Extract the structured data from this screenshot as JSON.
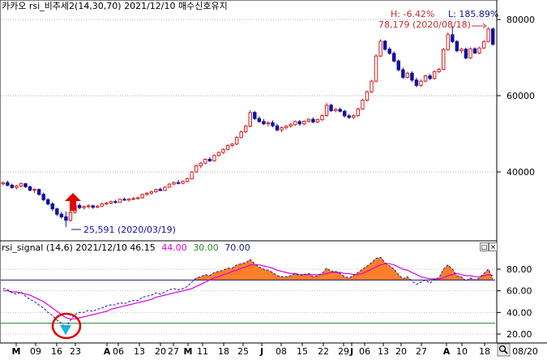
{
  "main_panel": {
    "title": "카카오 rsi_비추세2(14,30,70)  2021/12/10 매수신호유지",
    "hl_label_h": "H: -6.42%",
    "hl_label_l": "L: 185.89%",
    "high_annotation": "78,179 (2020/08/18)",
    "low_annotation": "25,591 (2020/03/19)"
  },
  "sub_panel": {
    "title_prefix": "rsi_signal  (14,6) 2021/12/10 46.15",
    "val_magenta": "44.00",
    "val_green": "30.00",
    "val_navy": "70.00"
  },
  "colors": {
    "up": "#d62020",
    "down": "#1010a0",
    "rsi": "#1a1aa0",
    "signal": "#dd00dd",
    "fill": "#ff7f27",
    "line70": "#1a1a7a",
    "line30": "#2a8a2a",
    "arrow": "#e00000",
    "circle": "#e00000",
    "triangle": "#1ab0e0"
  },
  "x_axis": {
    "labels": [
      "M",
      "09",
      "16",
      "23",
      "A",
      "06",
      "13",
      "20",
      "27",
      "M",
      "11",
      "18",
      "25",
      "J",
      "08",
      "15",
      "22",
      "29",
      "J",
      "06",
      "13",
      "20",
      "27",
      "A",
      "10",
      "18",
      "08/20"
    ]
  },
  "chart_data": [
    {
      "type": "candlestick",
      "title": "카카오 rsi_비추세2(14,30,70)  2021/12/10 매수신호유지",
      "ylim": [
        24000,
        82000
      ],
      "y_ticks": [
        80000,
        60000,
        40000
      ],
      "y_tick_labels": [
        "80000",
        "60000",
        "40000"
      ],
      "candles": [
        [
          36900,
          37500,
          36400,
          37200
        ],
        [
          37200,
          37700,
          36200,
          36500
        ],
        [
          36500,
          36900,
          35600,
          35900
        ],
        [
          35900,
          36600,
          35400,
          36300
        ],
        [
          36300,
          37300,
          35900,
          36900
        ],
        [
          36900,
          37100,
          35800,
          36100
        ],
        [
          36100,
          36400,
          34900,
          35200
        ],
        [
          35200,
          35700,
          34400,
          35400
        ],
        [
          35400,
          35600,
          33800,
          34100
        ],
        [
          34100,
          34600,
          32300,
          32700
        ],
        [
          32700,
          33100,
          31200,
          31600
        ],
        [
          31600,
          32100,
          29700,
          30300
        ],
        [
          30300,
          30600,
          28400,
          28900
        ],
        [
          28900,
          29500,
          27700,
          28200
        ],
        [
          28200,
          29600,
          25591,
          27300
        ],
        [
          27300,
          29900,
          26900,
          29400
        ],
        [
          29400,
          31800,
          29000,
          31200
        ],
        [
          31200,
          31700,
          30200,
          30600
        ],
        [
          30600,
          31200,
          30100,
          30900
        ],
        [
          30900,
          31500,
          30400,
          31100
        ],
        [
          31100,
          31400,
          30300,
          30700
        ],
        [
          30700,
          31300,
          30500,
          31000
        ],
        [
          31000,
          32000,
          30800,
          31600
        ],
        [
          31600,
          32100,
          31300,
          31800
        ],
        [
          31800,
          32500,
          31500,
          32200
        ],
        [
          32200,
          32700,
          31700,
          32000
        ],
        [
          32000,
          33000,
          31900,
          32800
        ],
        [
          32800,
          33300,
          32400,
          32600
        ],
        [
          32600,
          33100,
          32200,
          32900
        ],
        [
          32900,
          33400,
          32600,
          33000
        ],
        [
          33000,
          33500,
          32700,
          33200
        ],
        [
          33200,
          34300,
          33000,
          34100
        ],
        [
          34100,
          34700,
          33700,
          34400
        ],
        [
          34400,
          35000,
          34000,
          34800
        ],
        [
          34800,
          35600,
          34500,
          35400
        ],
        [
          35400,
          35900,
          35000,
          35100
        ],
        [
          35100,
          36200,
          35000,
          36000
        ],
        [
          36000,
          37000,
          35800,
          36800
        ],
        [
          36800,
          37500,
          36500,
          37200
        ],
        [
          37200,
          37900,
          36700,
          37000
        ],
        [
          37000,
          37800,
          36700,
          37500
        ],
        [
          37500,
          38500,
          37200,
          38200
        ],
        [
          38200,
          40200,
          38000,
          40000
        ],
        [
          40000,
          42000,
          39700,
          41600
        ],
        [
          41600,
          42600,
          41000,
          42300
        ],
        [
          42300,
          43600,
          42000,
          43300
        ],
        [
          43300,
          43900,
          42600,
          42900
        ],
        [
          42900,
          44600,
          42700,
          44300
        ],
        [
          44300,
          45400,
          44000,
          45100
        ],
        [
          45100,
          46200,
          44700,
          45900
        ],
        [
          45900,
          47300,
          45600,
          46900
        ],
        [
          46900,
          47600,
          46500,
          47300
        ],
        [
          47300,
          49400,
          47000,
          49000
        ],
        [
          49000,
          50900,
          48800,
          50500
        ],
        [
          50500,
          52400,
          50200,
          52000
        ],
        [
          52000,
          56200,
          51700,
          55600
        ],
        [
          55600,
          56000,
          53600,
          54000
        ],
        [
          54000,
          54600,
          52900,
          53200
        ],
        [
          53200,
          53900,
          52300,
          52600
        ],
        [
          52600,
          53300,
          51900,
          52900
        ],
        [
          52900,
          53500,
          51700,
          52100
        ],
        [
          52100,
          52600,
          50600,
          51000
        ],
        [
          51000,
          51900,
          50400,
          51600
        ],
        [
          51600,
          52300,
          51100,
          52000
        ],
        [
          52000,
          52800,
          51600,
          52400
        ],
        [
          52400,
          53500,
          52100,
          53200
        ],
        [
          53200,
          53600,
          52100,
          52600
        ],
        [
          52600,
          53500,
          52200,
          53300
        ],
        [
          53300,
          54100,
          52900,
          53800
        ],
        [
          53800,
          54300,
          52800,
          53100
        ],
        [
          53100,
          54000,
          52800,
          53700
        ],
        [
          53700,
          55100,
          53400,
          54800
        ],
        [
          54800,
          58100,
          54500,
          57500
        ],
        [
          57500,
          57900,
          55700,
          56100
        ],
        [
          56100,
          56800,
          55600,
          56400
        ],
        [
          56400,
          56900,
          55600,
          55900
        ],
        [
          55900,
          56300,
          54300,
          54700
        ],
        [
          54700,
          55200,
          53900,
          54300
        ],
        [
          54300,
          55100,
          53800,
          54800
        ],
        [
          54800,
          56900,
          54500,
          56500
        ],
        [
          56500,
          59200,
          56300,
          58800
        ],
        [
          58800,
          61400,
          58500,
          61000
        ],
        [
          61000,
          64200,
          60700,
          63800
        ],
        [
          63800,
          70900,
          63500,
          70400
        ],
        [
          70400,
          74800,
          70100,
          74300
        ],
        [
          74300,
          74600,
          71800,
          72200
        ],
        [
          72200,
          72800,
          70700,
          71100
        ],
        [
          71100,
          71600,
          68700,
          69100
        ],
        [
          69100,
          69500,
          66400,
          66800
        ],
        [
          66800,
          67400,
          64400,
          64800
        ],
        [
          64800,
          66300,
          64500,
          65900
        ],
        [
          65900,
          66400,
          63600,
          64100
        ],
        [
          64100,
          64700,
          62200,
          62700
        ],
        [
          62700,
          64300,
          62300,
          63800
        ],
        [
          63800,
          65500,
          63500,
          65200
        ],
        [
          65200,
          65700,
          64100,
          64500
        ],
        [
          64500,
          66700,
          64200,
          66300
        ],
        [
          66300,
          67300,
          65900,
          66900
        ],
        [
          66900,
          72600,
          66600,
          72100
        ],
        [
          72100,
          76600,
          71800,
          76000
        ],
        [
          76000,
          78179,
          73800,
          74200
        ],
        [
          74200,
          74600,
          71400,
          71800
        ],
        [
          71800,
          72600,
          71100,
          72200
        ],
        [
          72200,
          72600,
          69500,
          69900
        ],
        [
          69900,
          72700,
          69600,
          72300
        ],
        [
          72300,
          72700,
          70900,
          71200
        ],
        [
          71200,
          72900,
          70900,
          72500
        ],
        [
          72500,
          74600,
          72300,
          74200
        ],
        [
          74200,
          78000,
          74000,
          77500
        ],
        [
          77500,
          77900,
          73100,
          73500
        ]
      ],
      "annotations": [
        "H: -6.42%",
        "L: 185.89%",
        "78,179 (2020/08/18)",
        "25,591 (2020/03/19)"
      ],
      "marker": "buy-arrow"
    },
    {
      "type": "line",
      "title": "rsi_signal  (14,6) 2021/12/10 46.15 44.00 30.00 70.00",
      "ylim": [
        17,
        97
      ],
      "y_ticks": [
        80,
        60,
        40,
        20
      ],
      "y_tick_labels": [
        "80.00",
        "60.00",
        "40.00",
        "20.00"
      ],
      "hlines": [
        70,
        30
      ],
      "series": [
        {
          "values": [
            62,
            61,
            58,
            57,
            59,
            55,
            52,
            50,
            47,
            44,
            40,
            37,
            33,
            30,
            26,
            33,
            38,
            40,
            40,
            42,
            41,
            43,
            44,
            46,
            47,
            47,
            49,
            48,
            50,
            51,
            51,
            54,
            55,
            56,
            58,
            57,
            59,
            61,
            62,
            61,
            62,
            64,
            68,
            72,
            73,
            75,
            74,
            77,
            78,
            79,
            81,
            81,
            84,
            85,
            86,
            89,
            85,
            82,
            80,
            79,
            77,
            74,
            73,
            73,
            74,
            76,
            74,
            75,
            76,
            73,
            74,
            76,
            81,
            78,
            78,
            76,
            73,
            72,
            74,
            77,
            80,
            83,
            86,
            90,
            91,
            86,
            83,
            80,
            75,
            71,
            73,
            69,
            66,
            68,
            70,
            67,
            71,
            72,
            80,
            84,
            80,
            74,
            73,
            69,
            72,
            70,
            72,
            76,
            80,
            71
          ]
        },
        {
          "values": [
            60,
            60,
            59,
            59,
            58,
            57,
            56,
            54,
            52,
            50,
            47,
            44,
            41,
            38,
            35,
            34,
            34,
            35,
            36,
            37,
            38,
            39,
            40,
            41,
            43,
            44,
            45,
            46,
            47,
            48,
            49,
            50,
            51,
            52,
            54,
            55,
            56,
            57,
            58,
            59,
            60,
            61,
            62,
            64,
            66,
            68,
            70,
            72,
            73,
            75,
            76,
            78,
            79,
            81,
            82,
            84,
            84,
            84,
            83,
            82,
            81,
            79,
            78,
            77,
            76,
            76,
            75,
            75,
            75,
            75,
            75,
            75,
            76,
            77,
            77,
            77,
            76,
            76,
            75,
            75,
            76,
            78,
            80,
            82,
            84,
            85,
            85,
            84,
            82,
            80,
            79,
            77,
            75,
            73,
            72,
            71,
            71,
            71,
            72,
            74,
            75,
            76,
            75,
            74,
            74,
            73,
            73,
            74,
            75,
            74
          ]
        }
      ]
    }
  ]
}
